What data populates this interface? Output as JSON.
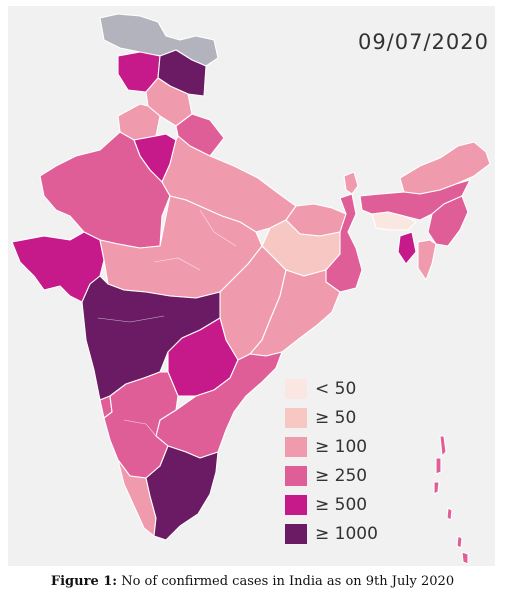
{
  "map": {
    "date": "09/07/2020",
    "legend": [
      {
        "label": "< 50",
        "color": "#fbe7e1"
      },
      {
        "label": "≥ 50",
        "color": "#f7c7c3"
      },
      {
        "label": "≥ 100",
        "color": "#f09aae"
      },
      {
        "label": "≥ 250",
        "color": "#e05e98"
      },
      {
        "label": "≥ 500",
        "color": "#c71a8a"
      },
      {
        "label": "≥ 1000",
        "color": "#6a1b63"
      }
    ],
    "no_data_color": "#b3b3bd",
    "background_color": "#f1f1f1"
  },
  "caption": {
    "label": "Figure 1:",
    "text": " No of confirmed cases in India as on 9th July 2020"
  }
}
